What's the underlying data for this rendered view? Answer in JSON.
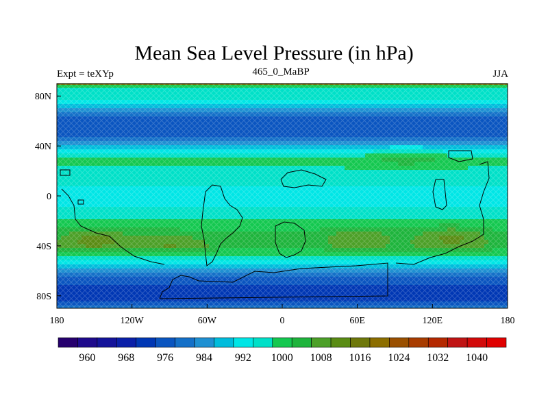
{
  "header": {
    "title": "Mean Sea Level Pressure (in hPa)",
    "left": "Expt = teXYp",
    "center": "465_0_MaBP",
    "right": "JJA"
  },
  "axes": {
    "x_ticks": [
      "180",
      "120W",
      "60W",
      "0",
      "60E",
      "120E",
      "180"
    ],
    "x_values": [
      -180,
      -120,
      -60,
      0,
      60,
      120,
      180
    ],
    "y_ticks": [
      "80N",
      "40N",
      "0",
      "40S",
      "80S"
    ],
    "y_values": [
      80,
      40,
      0,
      -40,
      -80
    ],
    "lon_range": [
      -180,
      180
    ],
    "lat_range": [
      -90,
      90
    ]
  },
  "colorbar": {
    "labels": [
      "960",
      "968",
      "976",
      "984",
      "992",
      "1000",
      "1008",
      "1016",
      "1024",
      "1032",
      "1040"
    ],
    "colors": [
      "#26006e",
      "#1e0a8c",
      "#14139a",
      "#0a1fa8",
      "#0037b4",
      "#0a55c0",
      "#1470c8",
      "#1e90d2",
      "#00bcdc",
      "#00e6e6",
      "#00e0c8",
      "#14c850",
      "#1eb43c",
      "#4ca028",
      "#5a8c14",
      "#6e780a",
      "#8c6e00",
      "#9a5000",
      "#a83c00",
      "#b42800",
      "#c01414",
      "#d20a0a",
      "#e00000"
    ]
  },
  "chart_data": {
    "type": "heatmap",
    "title": "Mean Sea Level Pressure (in hPa)",
    "xlabel": "",
    "ylabel": "",
    "lat_bands": [
      {
        "lat": 90,
        "hpa": 1000
      },
      {
        "lat": 80,
        "hpa": 996
      },
      {
        "lat": 70,
        "hpa": 988
      },
      {
        "lat": 60,
        "hpa": 976
      },
      {
        "lat": 50,
        "hpa": 976
      },
      {
        "lat": 40,
        "hpa": 988
      },
      {
        "lat": 30,
        "hpa": 1000
      },
      {
        "lat": 15,
        "hpa": 996
      },
      {
        "lat": 0,
        "hpa": 992
      },
      {
        "lat": -15,
        "hpa": 996
      },
      {
        "lat": -30,
        "hpa": 1002
      },
      {
        "lat": -40,
        "hpa": 1004
      },
      {
        "lat": -50,
        "hpa": 996
      },
      {
        "lat": -60,
        "hpa": 984
      },
      {
        "lat": -70,
        "hpa": 976
      },
      {
        "lat": -80,
        "hpa": 972
      },
      {
        "lat": -90,
        "hpa": 980
      }
    ],
    "highs": [
      {
        "lon": -150,
        "lat": -35,
        "hpa": 1008
      },
      {
        "lon": -90,
        "lat": -38,
        "hpa": 1006
      },
      {
        "lon": 135,
        "lat": -33,
        "hpa": 1008
      },
      {
        "lon": 60,
        "lat": -33,
        "hpa": 1006
      },
      {
        "lon": 100,
        "lat": 30,
        "hpa": 1004
      }
    ]
  }
}
